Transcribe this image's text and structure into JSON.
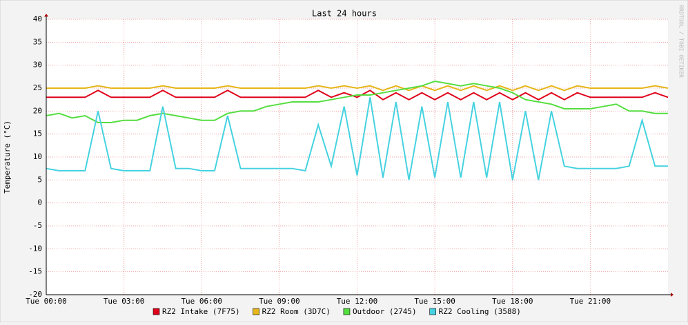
{
  "chart_data": {
    "type": "line",
    "title": "Last 24 hours",
    "y_label": "Temperature (°C)",
    "watermark": "RRDTOOL / TOBI OETIKER",
    "x": [
      0,
      0.5,
      1,
      1.5,
      2,
      2.5,
      3,
      3.5,
      4,
      4.5,
      5,
      5.5,
      6,
      6.5,
      7,
      7.5,
      8,
      8.5,
      9,
      9.5,
      10,
      10.5,
      11,
      11.5,
      12,
      12.5,
      13,
      13.5,
      14,
      14.5,
      15,
      15.5,
      16,
      16.5,
      17,
      17.5,
      18,
      18.5,
      19,
      19.5,
      20,
      20.5,
      21,
      21.5,
      22,
      22.5,
      23,
      23.5,
      24
    ],
    "xlim": [
      0,
      24
    ],
    "xticks": [
      {
        "value": 0,
        "label": "Tue 00:00"
      },
      {
        "value": 3,
        "label": "Tue 03:00"
      },
      {
        "value": 6,
        "label": "Tue 06:00"
      },
      {
        "value": 9,
        "label": "Tue 09:00"
      },
      {
        "value": 12,
        "label": "Tue 12:00"
      },
      {
        "value": 15,
        "label": "Tue 15:00"
      },
      {
        "value": 18,
        "label": "Tue 18:00"
      },
      {
        "value": 21,
        "label": "Tue 21:00"
      }
    ],
    "ylim": [
      -20,
      40
    ],
    "yticks": [
      -20,
      -15,
      -10,
      -5,
      0,
      5,
      10,
      15,
      20,
      25,
      30,
      35,
      40
    ],
    "grid": true,
    "series": [
      {
        "name": "RZ2 Intake (7F75)",
        "color": "#e0001a",
        "values": [
          23,
          23,
          23,
          23,
          24.5,
          23,
          23,
          23,
          23,
          24.5,
          23,
          23,
          23,
          23,
          24.5,
          23,
          23,
          23,
          23,
          23,
          23,
          24.5,
          23,
          24,
          23,
          24.5,
          22.5,
          24,
          22.5,
          24,
          22.5,
          24,
          22.5,
          24,
          22.5,
          24,
          22.5,
          24,
          22.5,
          24,
          22.5,
          24,
          23,
          23,
          23,
          23,
          23,
          24,
          23
        ]
      },
      {
        "name": "RZ2 Room (3D7C)",
        "color": "#e6b619",
        "values": [
          25,
          25,
          25,
          25,
          25.5,
          25,
          25,
          25,
          25,
          25.5,
          25,
          25,
          25,
          25,
          25.5,
          25,
          25,
          25,
          25,
          25,
          25,
          25.5,
          25,
          25.5,
          25,
          25.5,
          24.5,
          25.5,
          24.5,
          25.5,
          24.5,
          25.5,
          24.5,
          25.5,
          24.5,
          25.5,
          24.5,
          25.5,
          24.5,
          25.5,
          24.5,
          25.5,
          25,
          25,
          25,
          25,
          25,
          25.5,
          25
        ]
      },
      {
        "name": "Outdoor (2745)",
        "color": "#54de3f",
        "values": [
          19,
          19.5,
          18.5,
          19,
          17.5,
          17.5,
          18,
          18,
          19,
          19.5,
          19,
          18.5,
          18,
          18,
          19.5,
          20,
          20,
          21,
          21.5,
          22,
          22,
          22,
          22.5,
          23,
          23.5,
          23.5,
          24,
          24.5,
          25,
          25.5,
          26.5,
          26,
          25.5,
          26,
          25.5,
          25,
          24,
          22.5,
          22,
          21.5,
          20.5,
          20.5,
          20.5,
          21,
          21.5,
          20,
          20,
          19.5,
          19.5
        ]
      },
      {
        "name": "RZ2 Cooling (3588)",
        "color": "#45d2e0",
        "values": [
          7.5,
          7,
          7,
          7,
          20,
          7.5,
          7,
          7,
          7,
          21,
          7.5,
          7.5,
          7,
          7,
          19,
          7.5,
          7.5,
          7.5,
          7.5,
          7.5,
          7,
          17,
          8,
          21,
          6,
          23,
          5.5,
          22,
          5,
          21,
          5.5,
          22,
          5.5,
          22,
          5.5,
          22,
          5,
          20,
          5,
          20,
          8,
          7.5,
          7.5,
          7.5,
          7.5,
          8,
          18,
          8,
          8
        ]
      }
    ]
  }
}
